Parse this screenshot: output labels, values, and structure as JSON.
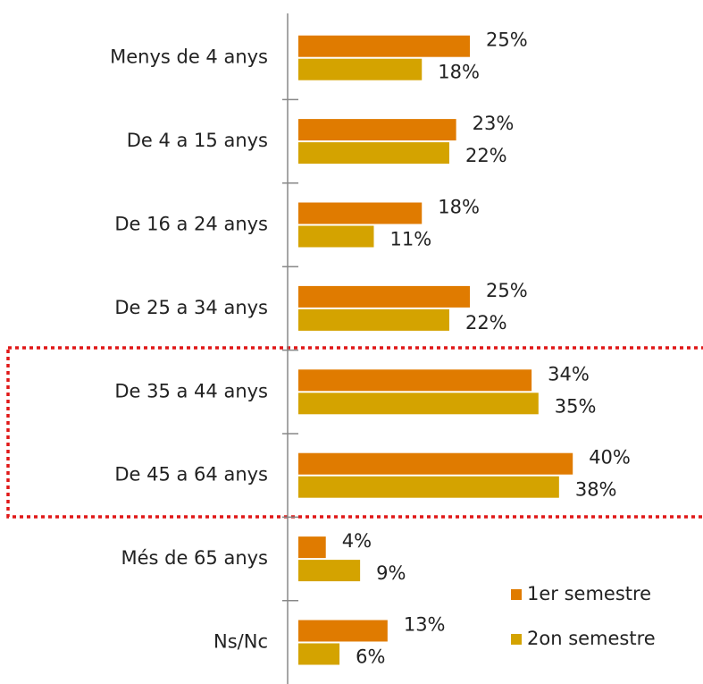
{
  "chart_data": {
    "type": "bar",
    "orientation": "horizontal",
    "categories": [
      "Menys de 4 anys",
      "De 4 a 15 anys",
      "De 16 a 24 anys",
      "De 25 a 34 anys",
      "De 35 a 44 anys",
      "De 45 a 64 anys",
      "Més de 65 anys",
      "Ns/Nc"
    ],
    "series": [
      {
        "name": "1er semestre",
        "color": "#e07b00",
        "values": [
          25,
          23,
          18,
          25,
          34,
          40,
          4,
          13
        ],
        "value_labels": [
          "25%",
          "23%",
          "18%",
          "25%",
          "34%",
          "40%",
          "4%",
          "13%"
        ]
      },
      {
        "name": "2on semestre",
        "color": "#d4a300",
        "values": [
          18,
          22,
          11,
          22,
          35,
          38,
          9,
          6
        ],
        "value_labels": [
          "18%",
          "22%",
          "11%",
          "22%",
          "35%",
          "38%",
          "9%",
          "6%"
        ]
      }
    ],
    "legend": "bottom-right"
  }
}
